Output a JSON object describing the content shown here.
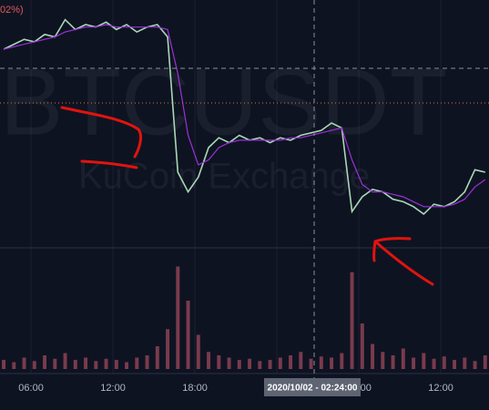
{
  "chart_data": {
    "type": "line",
    "header_text": "02%)",
    "watermark": "BTCUSDT",
    "watermark_sub": "KuCoin Exchange",
    "crosshair_label": "2020/10/02 - 02:24:00",
    "x": [
      4,
      4.75,
      5.5,
      6.25,
      7,
      7.75,
      8.5,
      9.25,
      10,
      10.75,
      11.5,
      12.25,
      13,
      13.75,
      14.5,
      15.25,
      16,
      16.75,
      17.5,
      18.25,
      19,
      19.75,
      20.5,
      21.25,
      22,
      22.75,
      23.5,
      24.25,
      25,
      25.75,
      26.5,
      27.25,
      28,
      28.75,
      29.5,
      30.25,
      31,
      31.75,
      32.5,
      33.25,
      34,
      34.75,
      35.5,
      36.25,
      37,
      37.75,
      38.5,
      39.25
    ],
    "series": [
      {
        "color": "#a9d8b4",
        "values": [
          80,
          82,
          84,
          83,
          86,
          85,
          92,
          88,
          90,
          89,
          91,
          88,
          90,
          87,
          89,
          90,
          85,
          30,
          22,
          28,
          40,
          44,
          42,
          45,
          43,
          44,
          42,
          44,
          43,
          45,
          46,
          47,
          50,
          48,
          14,
          20,
          23,
          22,
          19,
          18,
          16,
          13,
          17,
          16,
          18,
          22,
          31,
          30
        ]
      },
      {
        "color": "#9b30d9",
        "values": [
          80,
          81,
          82,
          83,
          84,
          85,
          87,
          88,
          89,
          89,
          90,
          89,
          89,
          89,
          89,
          89,
          88,
          70,
          45,
          33,
          35,
          40,
          42,
          43,
          43,
          43,
          43,
          43,
          44,
          44,
          45,
          46,
          47,
          48,
          35,
          25,
          22,
          22,
          21,
          20,
          18,
          16,
          16,
          16,
          17,
          19,
          24,
          27
        ]
      }
    ],
    "volume": {
      "color": "#7a3b4c",
      "ylim": [
        0,
        100
      ],
      "values": [
        8,
        6,
        10,
        7,
        12,
        9,
        14,
        8,
        10,
        7,
        9,
        8,
        6,
        10,
        12,
        20,
        35,
        90,
        60,
        30,
        15,
        12,
        10,
        8,
        9,
        7,
        8,
        10,
        12,
        15,
        9,
        11,
        10,
        14,
        85,
        40,
        22,
        15,
        12,
        18,
        10,
        14,
        9,
        11,
        8,
        10,
        7,
        12
      ]
    },
    "xlim": [
      3.73,
      39.53
    ],
    "ylim": [
      0,
      100
    ],
    "xticks": [
      {
        "value": 6,
        "label": "06:00"
      },
      {
        "value": 12,
        "label": "12:00"
      },
      {
        "value": 18,
        "label": "18:00"
      },
      {
        "value": 24,
        "label": "00:00"
      },
      {
        "value": 30,
        "label": "06:00"
      },
      {
        "value": 36,
        "label": "12:00"
      }
    ],
    "grid": true
  }
}
